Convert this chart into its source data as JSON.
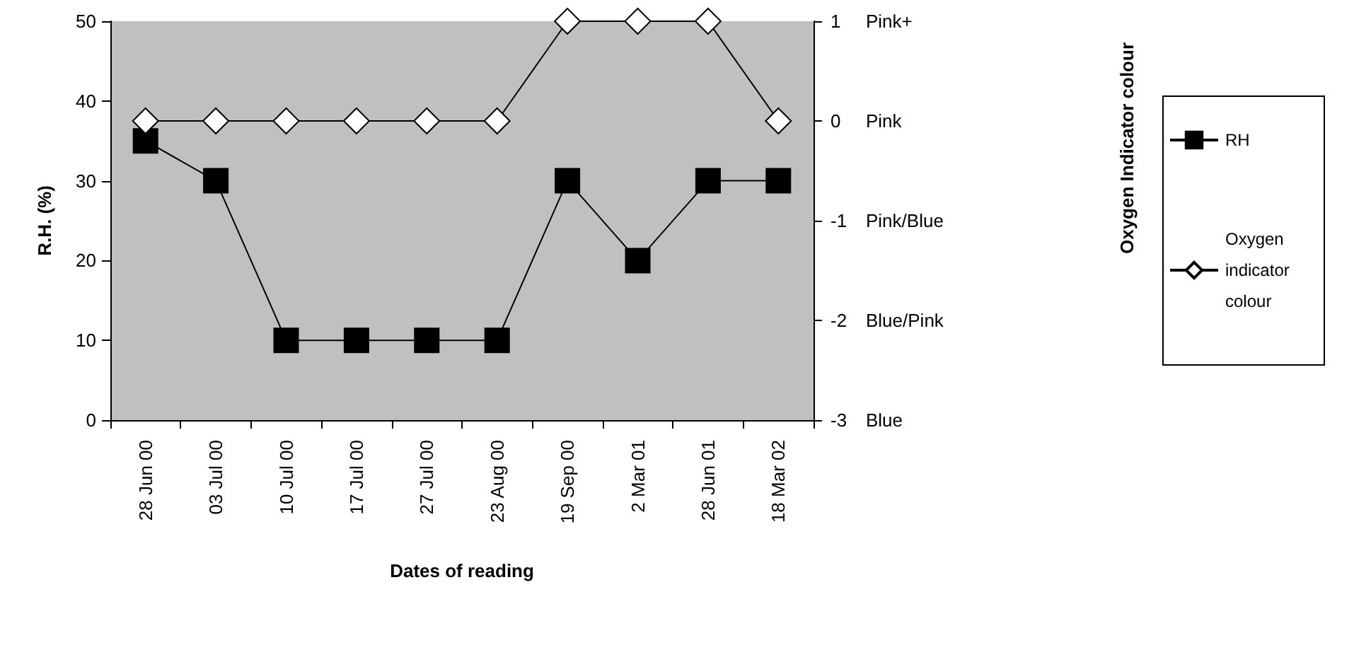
{
  "chart_data": {
    "type": "line",
    "xlabel": "Dates of reading",
    "ylabel": "R.H. (%)",
    "categories": [
      "28 Jun 00",
      "03 Jul 00",
      "10 Jul 00",
      "17 Jul 00",
      "27 Jul 00",
      "23 Aug 00",
      "19 Sep 00",
      "2 Mar 01",
      "28 Jun 01",
      "18 Mar 02"
    ],
    "series": [
      {
        "name": "RH",
        "color": "#000000",
        "marker": "square",
        "values": [
          35,
          30,
          10,
          10,
          10,
          10,
          30,
          20,
          30,
          30
        ]
      },
      {
        "name": "Oxygen indicator colour",
        "color": "#ffffff",
        "marker": "diamond",
        "axis": "y2",
        "values": [
          0,
          0,
          0,
          0,
          0,
          0,
          1,
          1,
          1,
          0
        ]
      }
    ],
    "ylim": [
      0,
      50
    ],
    "yticks": [
      0,
      10,
      20,
      30,
      40,
      50
    ],
    "y2lim": [
      -3,
      1
    ],
    "y2ticks": [
      -3,
      -2,
      -1,
      0,
      1
    ],
    "annotations": [
      "Pink+",
      "Pink",
      "Pink/Blue",
      "Blue/Pink",
      "Blue",
      "Oxygen Indicator colour"
    ],
    "grid": false,
    "legend": "right",
    "line_style": "solid"
  }
}
